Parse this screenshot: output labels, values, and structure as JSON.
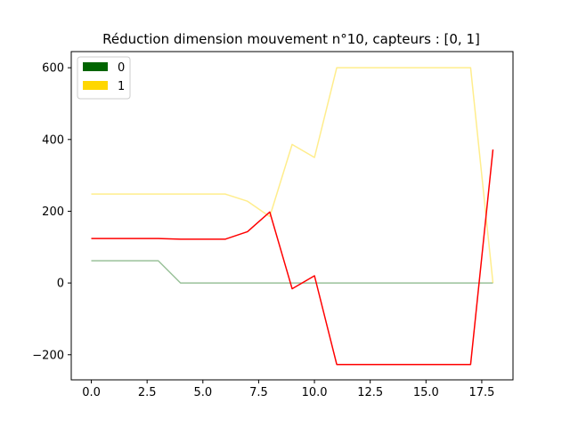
{
  "chart_data": {
    "type": "line",
    "title": "Réduction dimension mouvement n°10, capteurs : [0, 1]",
    "xlabel": "",
    "ylabel": "",
    "xlim": [
      -0.9,
      18.9
    ],
    "ylim": [
      -270,
      645
    ],
    "grid": false,
    "x_ticks": [
      0,
      2.5,
      5,
      7.5,
      10,
      12.5,
      15,
      17.5
    ],
    "x_tick_labels": [
      "0.0",
      "2.5",
      "5.0",
      "7.5",
      "10.0",
      "12.5",
      "15.0",
      "17.5"
    ],
    "y_ticks": [
      -200,
      0,
      200,
      400,
      600
    ],
    "y_tick_labels": [
      "−200",
      "0",
      "200",
      "400",
      "600"
    ],
    "legend": {
      "placement": "top-left",
      "entries": [
        {
          "label": "0",
          "color": "#006400"
        },
        {
          "label": "1",
          "color": "#ffd700"
        }
      ]
    },
    "x": [
      0,
      1,
      2,
      3,
      4,
      5,
      6,
      7,
      8,
      9,
      10,
      11,
      12,
      13,
      14,
      15,
      16,
      17,
      18
    ],
    "series": [
      {
        "color": "#006400",
        "opacity": 0.4,
        "values": [
          62,
          62,
          62,
          62,
          0,
          0,
          0,
          0,
          0,
          0,
          0,
          0,
          0,
          0,
          0,
          0,
          0,
          0,
          0
        ]
      },
      {
        "color": "#ffd700",
        "opacity": 0.45,
        "values": [
          248,
          248,
          248,
          248,
          248,
          248,
          248,
          228,
          185,
          386,
          350,
          600,
          600,
          600,
          600,
          600,
          600,
          600,
          0
        ]
      },
      {
        "color": "#ff0000",
        "opacity": 1,
        "values": [
          124,
          124,
          124,
          124,
          122,
          122,
          122,
          143,
          198,
          -16,
          20,
          -227,
          -227,
          -227,
          -227,
          -227,
          -227,
          -227,
          372
        ]
      }
    ]
  }
}
